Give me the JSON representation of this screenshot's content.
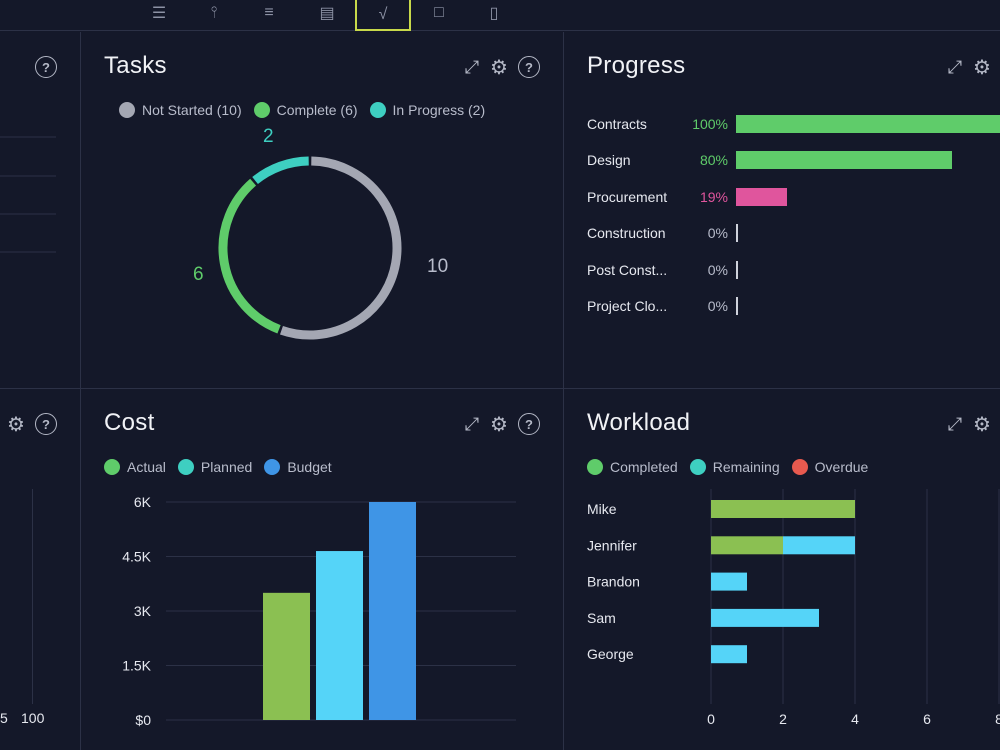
{
  "toolbar": {
    "buttons": [
      {
        "name": "list-view-icon",
        "glyph": "☰"
      },
      {
        "name": "board-view-icon",
        "glyph": "⫯"
      },
      {
        "name": "gantt-view-icon",
        "glyph": "≡"
      },
      {
        "name": "sheet-view-icon",
        "glyph": "▤"
      },
      {
        "name": "dashboard-view-icon",
        "glyph": "√"
      },
      {
        "name": "calendar-view-icon",
        "glyph": "□"
      },
      {
        "name": "files-view-icon",
        "glyph": "▯"
      }
    ]
  },
  "left_top": {
    "help": "?"
  },
  "left_bottom": {
    "help": "?",
    "axis_left": "5",
    "axis_right": "100"
  },
  "tasks": {
    "title": "Tasks",
    "help": "?",
    "legend": [
      {
        "label": "Not Started (10)",
        "color": "#a4a7b3"
      },
      {
        "label": "Complete (6)",
        "color": "#5fcc6a"
      },
      {
        "label": "In Progress (2)",
        "color": "#3ecfc1"
      }
    ],
    "labels": {
      "not_started": "10",
      "complete": "6",
      "in_progress": "2"
    }
  },
  "progress": {
    "title": "Progress",
    "items": [
      {
        "label": "Contracts",
        "pct_text": "100%",
        "value": 100,
        "color": "#5fcc6a"
      },
      {
        "label": "Design",
        "pct_text": "80%",
        "value": 80,
        "color": "#5fcc6a"
      },
      {
        "label": "Procurement",
        "pct_text": "19%",
        "value": 19,
        "color": "#e0559d"
      },
      {
        "label": "Construction",
        "pct_text": "0%",
        "value": 0,
        "color": "#b8bccb"
      },
      {
        "label": "Post Const...",
        "pct_text": "0%",
        "value": 0,
        "color": "#b8bccb"
      },
      {
        "label": "Project Clo...",
        "pct_text": "0%",
        "value": 0,
        "color": "#b8bccb"
      }
    ]
  },
  "cost": {
    "title": "Cost",
    "help": "?",
    "legend": [
      {
        "label": "Actual",
        "color": "#5fcc6a"
      },
      {
        "label": "Planned",
        "color": "#3ecfc1"
      },
      {
        "label": "Budget",
        "color": "#3f95e6"
      }
    ]
  },
  "workload": {
    "title": "Workload",
    "legend": [
      {
        "label": "Completed",
        "color": "#5fcc6a"
      },
      {
        "label": "Remaining",
        "color": "#3ecfc1"
      },
      {
        "label": "Overdue",
        "color": "#e85a4f"
      }
    ],
    "people": [
      "Mike",
      "Jennifer",
      "Brandon",
      "Sam",
      "George"
    ]
  },
  "chart_data": [
    {
      "type": "pie",
      "title": "Tasks",
      "categories": [
        "Not Started",
        "Complete",
        "In Progress"
      ],
      "values": [
        10,
        6,
        2
      ],
      "colors": [
        "#a4a7b3",
        "#5fcc6a",
        "#3ecfc1"
      ]
    },
    {
      "type": "bar",
      "title": "Progress",
      "orientation": "horizontal",
      "categories": [
        "Contracts",
        "Design",
        "Procurement",
        "Construction",
        "Post Const...",
        "Project Clo..."
      ],
      "values": [
        100,
        80,
        19,
        0,
        0,
        0
      ],
      "xlim": [
        0,
        100
      ]
    },
    {
      "type": "bar",
      "title": "Cost",
      "categories": [
        "Actual",
        "Planned",
        "Budget"
      ],
      "values": [
        3500,
        4650,
        6000
      ],
      "colors": [
        "#8bc052",
        "#55d4f8",
        "#3f95e6"
      ],
      "ylim": [
        0,
        6000
      ],
      "yticks": [
        "$0",
        "1.5K",
        "3K",
        "4.5K",
        "6K"
      ],
      "ytick_values": [
        0,
        1500,
        3000,
        4500,
        6000
      ],
      "grid": true
    },
    {
      "type": "bar",
      "title": "Workload",
      "orientation": "horizontal",
      "stacked": true,
      "categories": [
        "Mike",
        "Jennifer",
        "Brandon",
        "Sam",
        "George"
      ],
      "series": [
        {
          "name": "Completed",
          "values": [
            4,
            2,
            0,
            0,
            0
          ],
          "color": "#8bc052"
        },
        {
          "name": "Remaining",
          "values": [
            0,
            2,
            1,
            3,
            1
          ],
          "color": "#55d4f8"
        },
        {
          "name": "Overdue",
          "values": [
            0,
            0,
            0,
            0,
            0
          ],
          "color": "#e85a4f"
        }
      ],
      "xlim": [
        0,
        8
      ],
      "xticks": [
        "0",
        "2",
        "4",
        "6",
        "8"
      ],
      "xtick_values": [
        0,
        2,
        4,
        6,
        8
      ]
    }
  ]
}
